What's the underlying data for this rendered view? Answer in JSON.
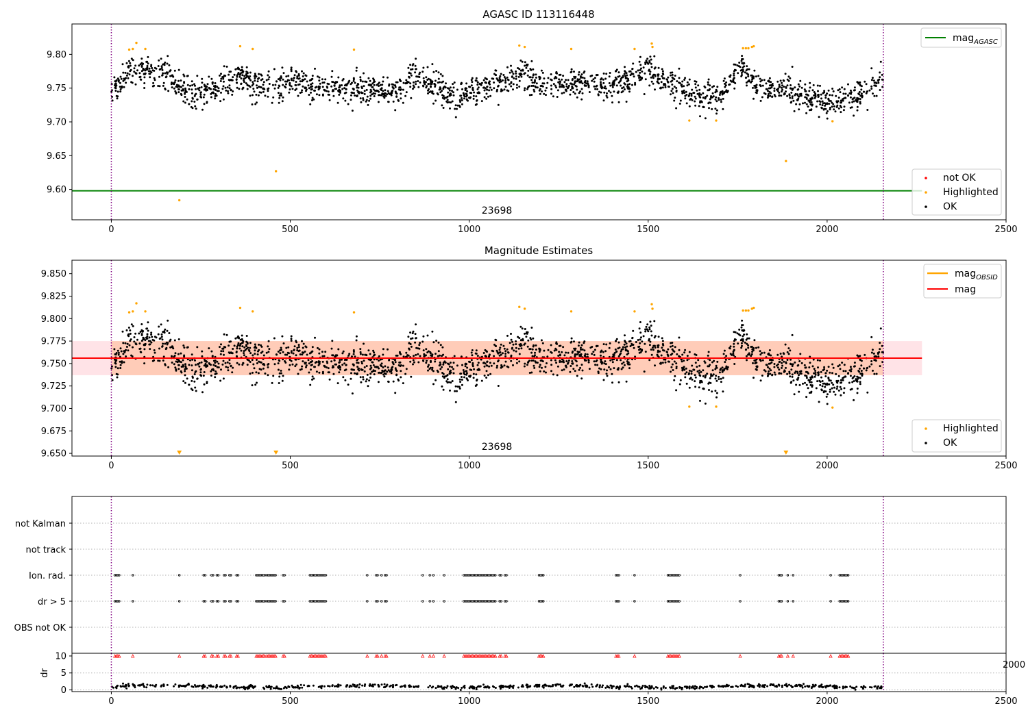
{
  "chart_data": [
    {
      "type": "scatter",
      "title": "AGASC ID 113116448",
      "xlabel": "",
      "ylabel": "",
      "xlim": [
        -110,
        2500
      ],
      "ylim": [
        9.555,
        9.845
      ],
      "xticks": [
        "0",
        "500",
        "1000",
        "1500",
        "2000",
        "2500"
      ],
      "yticks": [
        "9.60",
        "9.65",
        "9.70",
        "9.75",
        "9.80"
      ],
      "annotation": "23698",
      "obs_boundaries_x": [
        0,
        2157
      ],
      "agasc_mag": 9.598,
      "agasc_line_xrange": [
        -110,
        2265
      ],
      "legend_top": {
        "placement": "top-right",
        "entries": [
          {
            "label": "mag",
            "sub": "AGASC",
            "color": "#008000"
          }
        ]
      },
      "legend_bottom": {
        "placement": "lower-right",
        "entries": [
          {
            "label": "not OK",
            "color": "#ff0000"
          },
          {
            "label": "Highlighted",
            "color": "#ffa500"
          },
          {
            "label": "OK",
            "color": "#000000"
          }
        ]
      },
      "highlighted_points": [
        [
          50,
          9.807
        ],
        [
          60,
          9.808
        ],
        [
          70,
          9.817
        ],
        [
          95,
          9.808
        ],
        [
          190,
          9.584
        ],
        [
          360,
          9.812
        ],
        [
          395,
          9.808
        ],
        [
          460,
          9.627
        ],
        [
          678,
          9.807
        ],
        [
          1140,
          9.813
        ],
        [
          1155,
          9.811
        ],
        [
          1285,
          9.808
        ],
        [
          1462,
          9.808
        ],
        [
          1510,
          9.816
        ],
        [
          1512,
          9.811
        ],
        [
          1615,
          9.702
        ],
        [
          1690,
          9.702
        ],
        [
          1765,
          9.809
        ],
        [
          1773,
          9.809
        ],
        [
          1780,
          9.809
        ],
        [
          1790,
          9.811
        ],
        [
          1795,
          9.812
        ],
        [
          1885,
          9.642
        ],
        [
          2015,
          9.701
        ]
      ]
    },
    {
      "type": "scatter",
      "title": "Magnitude Estimates",
      "xlabel": "",
      "ylabel": "",
      "xlim": [
        -110,
        2500
      ],
      "ylim": [
        9.647,
        9.865
      ],
      "xticks": [
        "0",
        "500",
        "1000",
        "1500",
        "2000",
        "2500"
      ],
      "yticks": [
        "9.650",
        "9.675",
        "9.700",
        "9.725",
        "9.750",
        "9.775",
        "9.800",
        "9.825",
        "9.850"
      ],
      "annotation": "23698",
      "obs_boundaries_x": [
        0,
        2157
      ],
      "mag": 9.756,
      "mag_band": [
        9.737,
        9.775
      ],
      "mag_obsid_band": [
        9.737,
        9.775
      ],
      "band_xrange": [
        -110,
        2265
      ],
      "obsid_band_xrange": [
        0,
        2157
      ],
      "low_markers_x": [
        190,
        460,
        1885
      ],
      "legend_top": {
        "placement": "top-right",
        "entries": [
          {
            "label": "mag",
            "sub": "OBSID",
            "color": "#ffa500"
          },
          {
            "label": "mag",
            "sub": "",
            "color": "#ff0000"
          }
        ]
      },
      "legend_bottom": {
        "placement": "lower-right",
        "entries": [
          {
            "label": "Highlighted",
            "color": "#ffa500"
          },
          {
            "label": "OK",
            "color": "#000000"
          }
        ]
      },
      "highlighted_points": [
        [
          50,
          9.807
        ],
        [
          60,
          9.808
        ],
        [
          70,
          9.817
        ],
        [
          95,
          9.808
        ],
        [
          360,
          9.812
        ],
        [
          395,
          9.808
        ],
        [
          678,
          9.807
        ],
        [
          1140,
          9.813
        ],
        [
          1155,
          9.811
        ],
        [
          1285,
          9.808
        ],
        [
          1462,
          9.808
        ],
        [
          1510,
          9.816
        ],
        [
          1512,
          9.811
        ],
        [
          1615,
          9.702
        ],
        [
          1690,
          9.702
        ],
        [
          1765,
          9.809
        ],
        [
          1773,
          9.809
        ],
        [
          1780,
          9.809
        ],
        [
          1790,
          9.811
        ],
        [
          1795,
          9.812
        ],
        [
          2015,
          9.701
        ]
      ]
    },
    {
      "type": "scatter",
      "title": "",
      "xlim": [
        -110,
        2500
      ],
      "flag_labels": [
        "not Kalman",
        "not track",
        "Ion. rad.",
        "dr > 5",
        "OBS not OK"
      ],
      "obs_boundaries_x": [
        0,
        2157
      ],
      "flag_clusters": [
        [
          10,
          25
        ],
        [
          60,
          62
        ],
        [
          190,
          192
        ],
        [
          258,
          262
        ],
        [
          280,
          285
        ],
        [
          295,
          300
        ],
        [
          315,
          320
        ],
        [
          330,
          335
        ],
        [
          350,
          355
        ],
        [
          405,
          430
        ],
        [
          435,
          460
        ],
        [
          480,
          485
        ],
        [
          555,
          600
        ],
        [
          715,
          718
        ],
        [
          740,
          745
        ],
        [
          755,
          758
        ],
        [
          765,
          770
        ],
        [
          870,
          873
        ],
        [
          890,
          893
        ],
        [
          900,
          903
        ],
        [
          930,
          933
        ],
        [
          985,
          1075
        ],
        [
          1085,
          1090
        ],
        [
          1100,
          1105
        ],
        [
          1195,
          1210
        ],
        [
          1410,
          1420
        ],
        [
          1462,
          1465
        ],
        [
          1555,
          1590
        ],
        [
          1757,
          1760
        ],
        [
          1865,
          1875
        ],
        [
          1890,
          1893
        ],
        [
          1905,
          1908
        ],
        [
          2010,
          2013
        ],
        [
          2035,
          2060
        ]
      ]
    },
    {
      "type": "scatter",
      "title": "",
      "xlabel": "",
      "ylabel": "dr",
      "xlim": [
        -110,
        2500
      ],
      "ylim": [
        -0.5,
        10.8
      ],
      "xticks": [
        "0",
        "500",
        "1000",
        "1500",
        "2000",
        "2500"
      ],
      "yticks": [
        "0",
        "5",
        "10"
      ],
      "overlap_tick": "2000",
      "obs_boundaries_x": [
        0,
        2157
      ],
      "dr_clip_value": 10,
      "dr_baseline": 1.0
    }
  ]
}
